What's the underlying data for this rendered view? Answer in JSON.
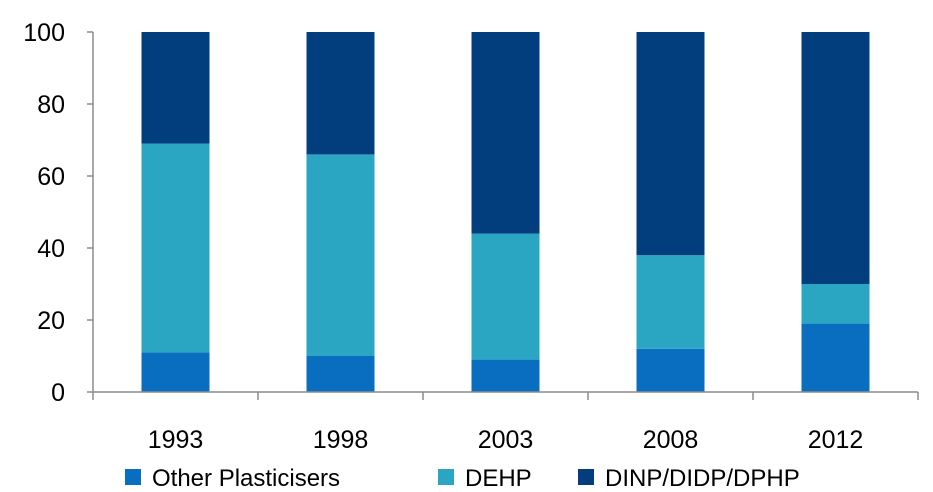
{
  "chart_data": {
    "type": "bar",
    "stacked": true,
    "categories": [
      "1993",
      "1998",
      "2003",
      "2008",
      "2012"
    ],
    "series": [
      {
        "name": "Other Plasticisers",
        "values": [
          11,
          10,
          9,
          12,
          19
        ],
        "color": "#0A6EC0"
      },
      {
        "name": "DEHP",
        "values": [
          58,
          56,
          35,
          26,
          11
        ],
        "color": "#2AA6C2"
      },
      {
        "name": "DINP/DIDP/DPHP",
        "values": [
          31,
          34,
          56,
          62,
          70
        ],
        "color": "#023E7E"
      }
    ],
    "yticks": [
      "0",
      "20",
      "40",
      "60",
      "80",
      "100"
    ],
    "ylim": [
      0,
      100
    ],
    "grid": false,
    "legend_position": "bottom"
  }
}
